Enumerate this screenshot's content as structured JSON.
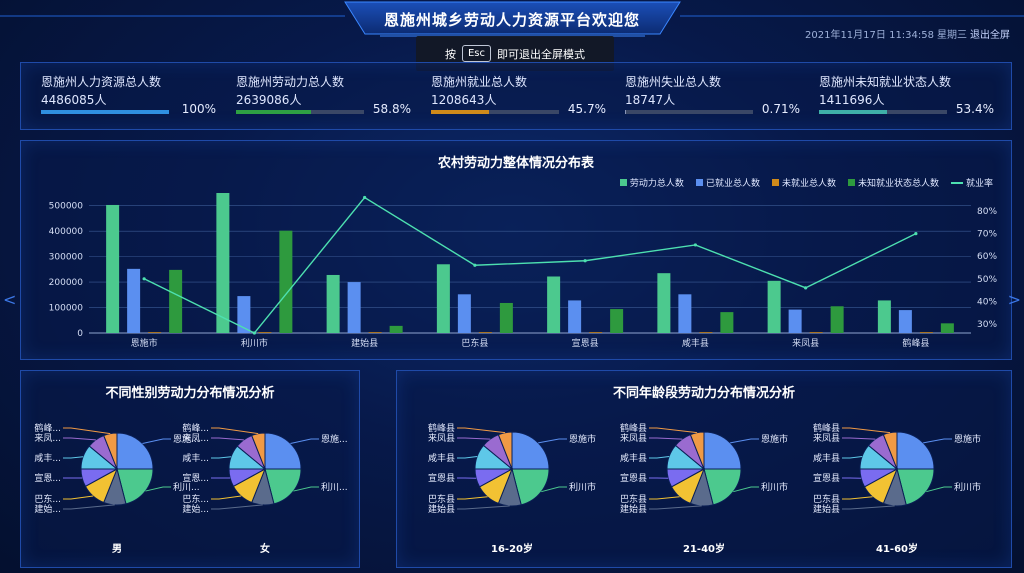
{
  "header": {
    "title": "恩施州城乡劳动人力资源平台欢迎您",
    "datetime": "2021年11月17日 11:34:58",
    "weekday": "星期三",
    "exit_fullscreen_label": "退出全屏"
  },
  "fullscreen_toast": {
    "prefix": "按",
    "key": "Esc",
    "suffix": "即可退出全屏模式"
  },
  "stats": [
    {
      "name": "恩施州人力资源总人数",
      "count": "4486085人",
      "percent_label": "100%",
      "percent": 100,
      "color": "#2f8fe0"
    },
    {
      "name": "恩施州劳动力总人数",
      "count": "2639086人",
      "percent_label": "58.8%",
      "percent": 58.8,
      "color": "#2ea043"
    },
    {
      "name": "恩施州就业总人数",
      "count": "1208643人",
      "percent_label": "45.7%",
      "percent": 45.7,
      "color": "#d08a1a"
    },
    {
      "name": "恩施州失业总人数",
      "count": "18747人",
      "percent_label": "0.71%",
      "percent": 0.71,
      "color": "#8a96b8"
    },
    {
      "name": "恩施州未知就业状态人数",
      "count": "1411696人",
      "percent_label": "53.4%",
      "percent": 53.4,
      "color": "#3fb0a8"
    }
  ],
  "main_chart": {
    "title": "农村劳动力整体情况分布表",
    "chart_data": {
      "type": "bar",
      "categories": [
        "恩施市",
        "利川市",
        "建始县",
        "巴东县",
        "宣恩县",
        "咸丰县",
        "来凤县",
        "鹤峰县"
      ],
      "series": [
        {
          "name": "劳动力总人数",
          "color": "#4cc98e",
          "values": [
            503000,
            550000,
            228000,
            270000,
            222000,
            235000,
            205000,
            128000
          ]
        },
        {
          "name": "已就业总人数",
          "color": "#5b8ff0",
          "values": [
            252000,
            145000,
            200000,
            152000,
            128000,
            152000,
            92000,
            90000
          ]
        },
        {
          "name": "未就业总人数",
          "color": "#d08a1a",
          "values": [
            3000,
            2500,
            1500,
            1500,
            1200,
            1300,
            2500,
            800
          ]
        },
        {
          "name": "未知就业状态总人数",
          "color": "#2e9a3e",
          "values": [
            248000,
            402000,
            28000,
            118000,
            94000,
            82000,
            105000,
            38000
          ]
        }
      ],
      "line": {
        "name": "就业率",
        "color": "#4de0b0",
        "values": [
          50,
          26,
          86,
          56,
          58,
          65,
          46,
          70
        ]
      },
      "y_ticks": [
        "0",
        "100000",
        "200000",
        "300000",
        "400000",
        "500000"
      ],
      "y2_ticks": [
        "30%",
        "40%",
        "50%",
        "60%",
        "70%",
        "80%"
      ],
      "ylim": [
        0,
        550000
      ],
      "y2lim": [
        26,
        88
      ]
    }
  },
  "gender_chart": {
    "title": "不同性别劳动力分布情况分析",
    "pies": [
      {
        "label": "男",
        "slice_labels": [
          "恩施...",
          "利川...",
          "建始...",
          "巴东...",
          "宣恩...",
          "咸丰...",
          "来凤...",
          "鹤峰..."
        ]
      },
      {
        "label": "女",
        "slice_labels": [
          "恩施...",
          "利川...",
          "建始...",
          "巴东...",
          "宣恩...",
          "咸丰...",
          "来凤...",
          "鹤峰..."
        ]
      }
    ]
  },
  "age_chart": {
    "title": "不同年龄段劳动力分布情况分析",
    "pies": [
      {
        "label": "16-20岁",
        "slice_labels": [
          "恩施市",
          "利川市",
          "建始县",
          "巴东县",
          "宣恩县",
          "咸丰县",
          "来凤县",
          "鹤峰县"
        ]
      },
      {
        "label": "21-40岁",
        "slice_labels": [
          "恩施市",
          "利川市",
          "建始县",
          "巴东县",
          "宣恩县",
          "咸丰县",
          "来凤县",
          "鹤峰县"
        ]
      },
      {
        "label": "41-60岁",
        "slice_labels": [
          "恩施市",
          "利川市",
          "建始县",
          "巴东县",
          "宣恩县",
          "咸丰县",
          "来凤县",
          "鹤峰县"
        ]
      }
    ]
  },
  "pie_colors": [
    "#5b8ff0",
    "#4cc98e",
    "#5a6b8c",
    "#f2c233",
    "#7a6cf0",
    "#5ec8e8",
    "#9a6bd0",
    "#f09a45"
  ],
  "pie_shares": [
    0.25,
    0.21,
    0.1,
    0.11,
    0.08,
    0.11,
    0.08,
    0.06
  ]
}
